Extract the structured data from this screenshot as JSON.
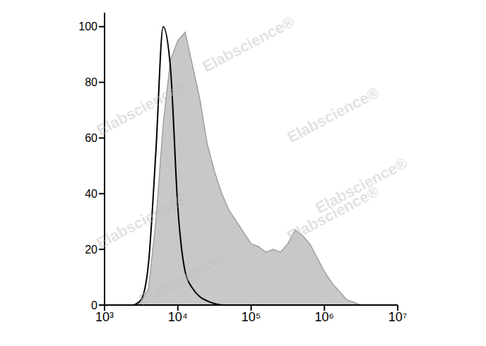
{
  "chart_data": {
    "type": "line",
    "log": "x",
    "annotations": [
      "Elabscience®"
    ],
    "x": [
      2512,
      3162,
      3981,
      5012,
      6310,
      7943,
      10000,
      12589,
      15849,
      19953,
      25119,
      31623,
      39811,
      50119,
      63096,
      79433,
      100000,
      125893,
      158489,
      199526,
      251189,
      316228,
      398107,
      501187,
      630957,
      794328,
      1000000,
      1258925,
      1584893,
      1995262,
      2511886,
      3162278
    ],
    "series": [
      {
        "type": "area",
        "color": "#c8c8c8",
        "values": [
          0,
          1,
          6,
          30,
          65,
          88,
          95,
          98,
          86,
          74,
          58,
          48,
          40,
          34,
          30,
          26,
          22,
          21,
          19,
          20,
          19,
          22,
          27,
          25,
          22,
          17,
          12,
          8,
          5,
          2,
          1,
          0
        ]
      },
      {
        "type": "line",
        "color": "#000000",
        "values": [
          0,
          2,
          15,
          55,
          100,
          85,
          35,
          12,
          6,
          3,
          1.5,
          0.5,
          0,
          null,
          null,
          null,
          null,
          null,
          null,
          null,
          null,
          null,
          null,
          null,
          null,
          null,
          null,
          null,
          null,
          null,
          null,
          null
        ]
      }
    ],
    "xlim": [
      1000,
      10000000
    ],
    "xticks": [
      {
        "value": 1000,
        "label": "10³"
      },
      {
        "value": 10000,
        "label": "10⁴"
      },
      {
        "value": 100000,
        "label": "10⁵"
      },
      {
        "value": 1000000,
        "label": "10⁶"
      },
      {
        "value": 10000000,
        "label": "10⁷"
      }
    ],
    "ylim": [
      0,
      105
    ],
    "yticks": [
      0,
      20,
      40,
      60,
      80,
      100
    ]
  }
}
